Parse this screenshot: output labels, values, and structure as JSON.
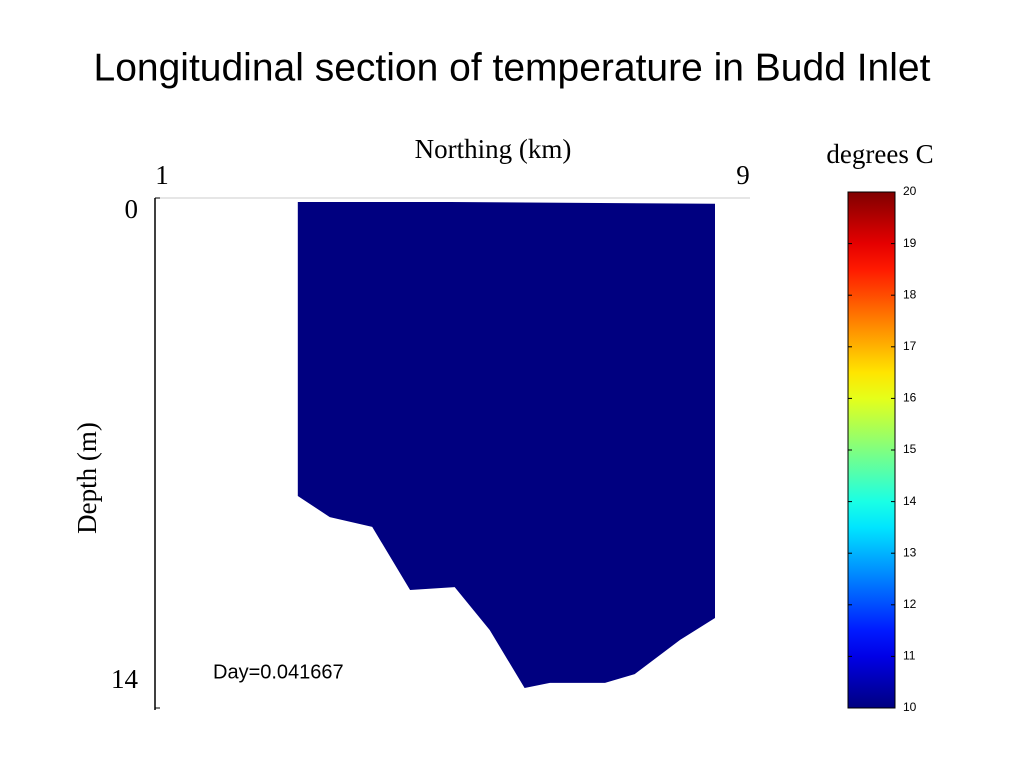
{
  "chart_data": {
    "type": "section",
    "title": "Longitudinal section of temperature in Budd Inlet",
    "xlabel": "Northing (km)",
    "ylabel": "Depth (m)",
    "x": [
      2.92,
      4.97,
      8.53,
      8.53,
      8.06,
      7.45,
      7.05,
      6.31,
      5.97,
      5.5,
      5.03,
      4.43,
      3.92,
      3.35,
      2.92
    ],
    "y": [
      0.11,
      0.11,
      0.16,
      11.53,
      12.13,
      13.07,
      13.31,
      13.31,
      13.45,
      11.86,
      10.68,
      10.76,
      9.03,
      8.76,
      8.18
    ],
    "value": 10,
    "xlim": [
      1,
      9
    ],
    "xticks": [
      1,
      9
    ],
    "ylim": [
      0,
      14
    ],
    "yticks": [
      0,
      14
    ],
    "y_reversed": true,
    "annotation": "Day=0.041667",
    "colorbar": {
      "label": "degrees C",
      "colormap": "jet",
      "lim": [
        10,
        20
      ],
      "ticks": [
        10,
        11,
        12,
        13,
        14,
        15,
        16,
        17,
        18,
        19,
        20
      ]
    }
  }
}
